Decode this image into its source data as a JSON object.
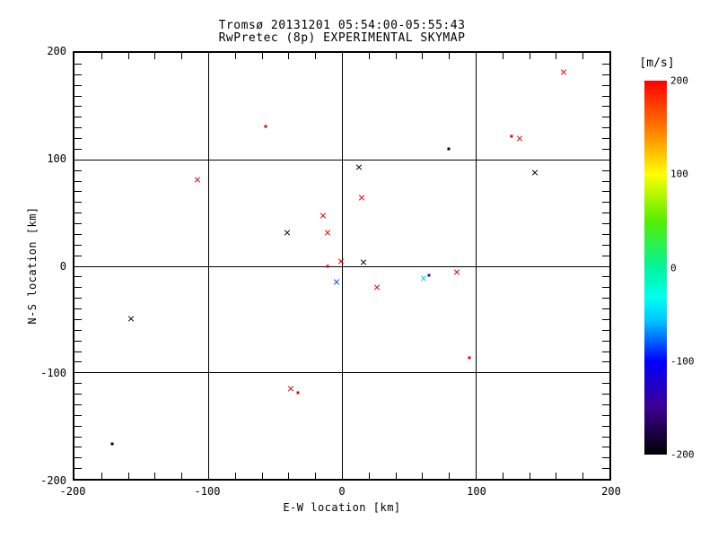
{
  "header": {
    "line1": "Tromsø 20131201 05:54:00-05:55:43",
    "line2": "RwPretec (8p) EXPERIMENTAL SKYMAP"
  },
  "chart_data": {
    "type": "scatter",
    "title": "Tromsø 20131201 05:54:00-05:55:43",
    "subtitle": "RwPretec (8p) EXPERIMENTAL SKYMAP",
    "xlabel": "E-W location [km]",
    "ylabel": "N-S location [km]",
    "xlim": [
      -200,
      200
    ],
    "ylim": [
      -200,
      200
    ],
    "grid": true,
    "grid_lines_at": [
      -100,
      0,
      100
    ],
    "x_major_ticks": [
      -200,
      -100,
      0,
      100,
      200
    ],
    "y_major_ticks": [
      -200,
      -100,
      0,
      100,
      200
    ],
    "x_tick_labels": [
      "-200",
      "-100",
      "0",
      "100",
      "200"
    ],
    "y_tick_labels": [
      "200",
      "100",
      "0",
      "-100",
      "-200"
    ],
    "x_minor_step": 20,
    "y_minor_step": 10,
    "points": [
      {
        "ew": -57,
        "ns": 131,
        "marker": "dot",
        "color": "#dd0000",
        "v_est_mps": 190
      },
      {
        "ew": -108,
        "ns": 81,
        "marker": "x",
        "color": "#dd0000",
        "v_est_mps": 190
      },
      {
        "ew": 166,
        "ns": 182,
        "marker": "x",
        "color": "#dd0000",
        "v_est_mps": 190
      },
      {
        "ew": 127,
        "ns": 122,
        "marker": "dot",
        "color": "#dd0000",
        "v_est_mps": 190
      },
      {
        "ew": 133,
        "ns": 120,
        "marker": "x",
        "color": "#dd0000",
        "v_est_mps": 190
      },
      {
        "ew": 80,
        "ns": 110,
        "marker": "dot",
        "color": "#000000",
        "v_est_mps": -200
      },
      {
        "ew": 144,
        "ns": 88,
        "marker": "x",
        "color": "#000000",
        "v_est_mps": -200
      },
      {
        "ew": 13,
        "ns": 93,
        "marker": "x",
        "color": "#000000",
        "v_est_mps": -200
      },
      {
        "ew": 15,
        "ns": 64,
        "marker": "x",
        "color": "#dd0000",
        "v_est_mps": 190
      },
      {
        "ew": -14,
        "ns": 47,
        "marker": "x",
        "color": "#dd0000",
        "v_est_mps": 190
      },
      {
        "ew": -41,
        "ns": 31,
        "marker": "x",
        "color": "#000000",
        "v_est_mps": -200
      },
      {
        "ew": -11,
        "ns": 31,
        "marker": "x",
        "color": "#dd0000",
        "v_est_mps": 190
      },
      {
        "ew": -11,
        "ns": 0,
        "marker": "dot",
        "color": "#dd0000",
        "v_est_mps": 190
      },
      {
        "ew": -1,
        "ns": 4,
        "marker": "x",
        "color": "#dd0000",
        "v_est_mps": 190
      },
      {
        "ew": 16,
        "ns": 3,
        "marker": "x",
        "color": "#000000",
        "v_est_mps": -200
      },
      {
        "ew": -4,
        "ns": -15,
        "marker": "x",
        "color": "#0040ff",
        "v_est_mps": -100
      },
      {
        "ew": 26,
        "ns": -20,
        "marker": "x",
        "color": "#dd0000",
        "v_est_mps": 190
      },
      {
        "ew": 61,
        "ns": -12,
        "marker": "x",
        "color": "#00ccff",
        "v_est_mps": -50
      },
      {
        "ew": 65,
        "ns": -9,
        "marker": "dot",
        "color": "#3a00c0",
        "v_est_mps": -150
      },
      {
        "ew": 86,
        "ns": -6,
        "marker": "x",
        "color": "#dd0000",
        "v_est_mps": 190
      },
      {
        "ew": -158,
        "ns": -50,
        "marker": "x",
        "color": "#000000",
        "v_est_mps": -200
      },
      {
        "ew": -38,
        "ns": -115,
        "marker": "x",
        "color": "#dd0000",
        "v_est_mps": 190
      },
      {
        "ew": -33,
        "ns": -119,
        "marker": "dot",
        "color": "#dd0000",
        "v_est_mps": 190
      },
      {
        "ew": 95,
        "ns": -86,
        "marker": "dot",
        "color": "#dd0000",
        "v_est_mps": 190
      },
      {
        "ew": -172,
        "ns": -167,
        "marker": "dot",
        "color": "#000000",
        "v_est_mps": -200
      }
    ],
    "colorbar": {
      "label": "[m/s]",
      "min": -200,
      "max": 200,
      "ticks": [
        200,
        100,
        0,
        -100,
        -200
      ],
      "tick_labels": [
        "200",
        "100",
        "0",
        "-100",
        "-200"
      ],
      "gradient_stops": [
        {
          "offset": 0,
          "color": "#ff0000"
        },
        {
          "offset": 12.5,
          "color": "#ff7700"
        },
        {
          "offset": 25,
          "color": "#ffff00"
        },
        {
          "offset": 37.5,
          "color": "#55ee00"
        },
        {
          "offset": 50,
          "color": "#00f59e"
        },
        {
          "offset": 58,
          "color": "#00ffee"
        },
        {
          "offset": 64,
          "color": "#00c8ff"
        },
        {
          "offset": 75,
          "color": "#0000ff"
        },
        {
          "offset": 87.5,
          "color": "#3c0090"
        },
        {
          "offset": 100,
          "color": "#000000"
        }
      ]
    }
  }
}
